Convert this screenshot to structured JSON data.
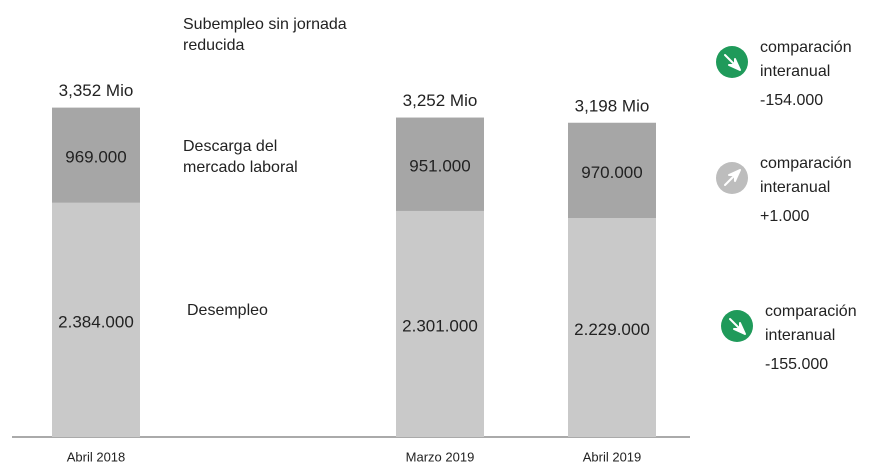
{
  "chart_data": {
    "type": "stacked-bar",
    "categories": [
      "Abril 2018",
      "Marzo 2019",
      "Abril 2019"
    ],
    "series": [
      {
        "name": "Desempleo",
        "color": "#c9c9c9",
        "values": [
          2384000,
          2301000,
          2229000
        ],
        "value_labels": [
          "2.384.000",
          "2.301.000",
          "2.229.000"
        ]
      },
      {
        "name": "Descarga del mercado laboral",
        "color": "#a6a6a6",
        "values": [
          969000,
          951000,
          970000
        ],
        "value_labels": [
          "969.000",
          "951.000",
          "970.000"
        ]
      }
    ],
    "totals": {
      "values": [
        3352000,
        3252000,
        3198000
      ],
      "value_labels": [
        "3,352 Mio",
        "3,252 Mio",
        "3,198 Mio"
      ]
    },
    "extra_label": "Subempleo sin jornada reducida",
    "ylim": [
      0,
      3400000
    ],
    "comparisons": [
      {
        "text": "comparación interanual",
        "value": -154000,
        "value_label": "-154.000"
      },
      {
        "text": "comparación interanual",
        "value": 1000,
        "value_label": "+1.000"
      },
      {
        "text": "comparación interanual",
        "value": -155000,
        "value_label": "-155.000"
      }
    ]
  }
}
